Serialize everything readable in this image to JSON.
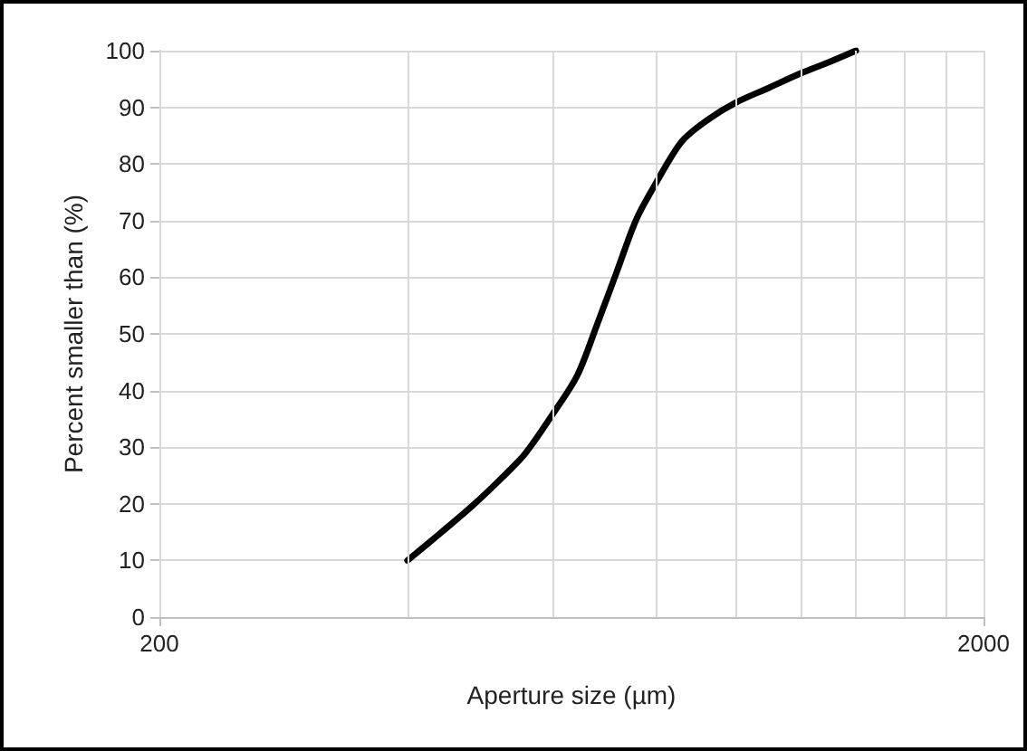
{
  "chart_data": {
    "type": "line",
    "xlabel": "Aperture size (µm)",
    "ylabel": "Percent smaller than (%)",
    "log": "x",
    "xlim": [
      200,
      2000
    ],
    "xticks": [
      200,
      {
        "value": 400,
        "label": null
      },
      {
        "value": 600,
        "label": null
      },
      {
        "value": 800,
        "label": null
      },
      {
        "value": 1000,
        "label": null
      },
      {
        "value": 1200,
        "label": null
      },
      {
        "value": 1400,
        "label": null
      },
      {
        "value": 1600,
        "label": null
      },
      {
        "value": 1800,
        "label": null
      },
      2000
    ],
    "ylim": [
      0,
      100
    ],
    "yticks": [
      0,
      10,
      20,
      30,
      40,
      50,
      60,
      70,
      80,
      90,
      100
    ],
    "grid": true,
    "marker": "none",
    "line_style": "solid",
    "series": [
      {
        "color": "#000000",
        "x": [
          400,
          440,
          480,
          520,
          556,
          600,
          643,
          680,
          718,
          758,
          800,
          861,
          930,
          1000,
          1100,
          1200,
          1300,
          1400
        ],
        "values": [
          10,
          15,
          19.7,
          24.5,
          28.9,
          35.8,
          42.7,
          51.8,
          61,
          70.2,
          76.5,
          84,
          88,
          90.8,
          93.5,
          96,
          98,
          100
        ]
      }
    ]
  }
}
